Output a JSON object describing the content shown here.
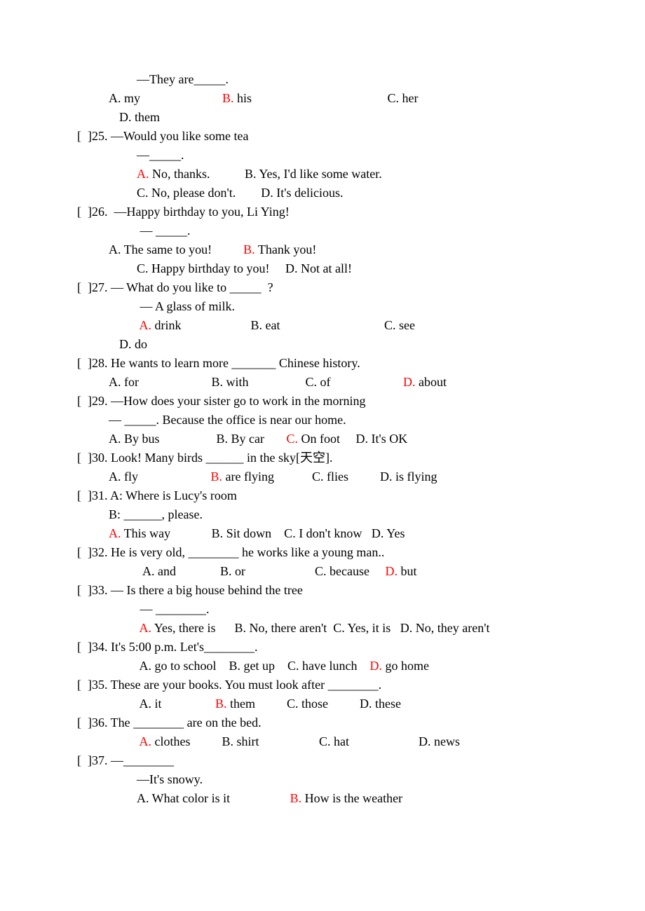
{
  "lines": [
    {
      "indent": 1,
      "segments": [
        {
          "t": "—They are_____."
        }
      ]
    },
    {
      "indent": 3,
      "segments": [
        {
          "t": "A. my                          "
        },
        {
          "t": "B.",
          "hl": true
        },
        {
          "t": " his                                           C. her"
        }
      ]
    },
    {
      "indent": 2,
      "segments": [
        {
          "t": "D. them"
        }
      ]
    },
    {
      "indent": 0,
      "segments": [
        {
          "t": "[  ]25. —Would you like some tea"
        }
      ]
    },
    {
      "indent": 1,
      "segments": [
        {
          "t": "—_____."
        }
      ]
    },
    {
      "indent": 1,
      "segments": [
        {
          "t": "A.",
          "hl": true
        },
        {
          "t": " No, thanks.           B. Yes, I'd like some water."
        }
      ]
    },
    {
      "indent": 1,
      "segments": [
        {
          "t": "C. No, please don't.        D. It's delicious."
        }
      ]
    },
    {
      "indent": 0,
      "segments": [
        {
          "t": "[  ]26.  —Happy birthday to you, Li Ying!"
        }
      ]
    },
    {
      "indent": 1,
      "segments": [
        {
          "t": " — _____."
        }
      ]
    },
    {
      "indent": 3,
      "segments": [
        {
          "t": "A. The same to you!          "
        },
        {
          "t": "B.",
          "hl": true
        },
        {
          "t": " Thank you!"
        }
      ]
    },
    {
      "indent": 1,
      "segments": [
        {
          "t": "C. Happy birthday to you!     D. Not at all!"
        }
      ]
    },
    {
      "indent": 0,
      "segments": [
        {
          "t": "[  ]27. — What do you like to _____  ?"
        }
      ]
    },
    {
      "indent": 1,
      "segments": [
        {
          "t": " — A glass of milk."
        }
      ]
    },
    {
      "indent": 1,
      "segments": [
        {
          "t": " "
        },
        {
          "t": "A.",
          "hl": true
        },
        {
          "t": " drink                      B. eat                                 C. see"
        }
      ]
    },
    {
      "indent": 2,
      "segments": [
        {
          "t": "D. do"
        }
      ]
    },
    {
      "indent": 0,
      "segments": [
        {
          "t": "[  ]28. He wants to learn more _______ Chinese history."
        }
      ]
    },
    {
      "indent": 3,
      "segments": [
        {
          "t": "A. for                       B. with                  C. of                       "
        },
        {
          "t": "D.",
          "hl": true
        },
        {
          "t": " about"
        }
      ]
    },
    {
      "indent": 0,
      "segments": [
        {
          "t": "[  ]29. —How does your sister go to work in the morning"
        }
      ]
    },
    {
      "indent": 3,
      "segments": [
        {
          "t": "— _____. Because the office is near our home."
        }
      ]
    },
    {
      "indent": 3,
      "segments": [
        {
          "t": "A. By bus                  B. By car       "
        },
        {
          "t": "C.",
          "hl": true
        },
        {
          "t": " On foot     D. It's OK"
        }
      ]
    },
    {
      "indent": 0,
      "segments": [
        {
          "t": "[  ]30. Look! Many birds ______ in the sky[天空]."
        }
      ]
    },
    {
      "indent": 3,
      "segments": [
        {
          "t": "A. fly                       "
        },
        {
          "t": "B.",
          "hl": true
        },
        {
          "t": " are flying            C. flies          D. is flying"
        }
      ]
    },
    {
      "indent": 0,
      "segments": [
        {
          "t": "[  ]31. A: Where is Lucy's room"
        }
      ]
    },
    {
      "indent": 3,
      "segments": [
        {
          "t": "B: ______, please."
        }
      ]
    },
    {
      "indent": 3,
      "segments": [
        {
          "t": "A.",
          "hl": true
        },
        {
          "t": " This way             B. Sit down    C. I don't know   D. Yes"
        }
      ]
    },
    {
      "indent": 0,
      "segments": [
        {
          "t": "[  ]32. He is very old, ________ he works like a young man.."
        }
      ]
    },
    {
      "indent": 1,
      "segments": [
        {
          "t": "  A. and              B"
        },
        {
          "t": ". "
        },
        {
          "t": "or                      C. because     "
        },
        {
          "t": "D.",
          "hl": true
        },
        {
          "t": " but"
        }
      ]
    },
    {
      "indent": 0,
      "segments": [
        {
          "t": "[  ]33. — Is there a big house behind the tree"
        }
      ]
    },
    {
      "indent": 1,
      "segments": [
        {
          "t": " — ________."
        }
      ]
    },
    {
      "indent": 1,
      "segments": [
        {
          "t": " "
        },
        {
          "t": "A.",
          "hl": true
        },
        {
          "t": " Yes, there is      B. No, there aren't  C. Yes, it is   D. No, they aren't"
        }
      ]
    },
    {
      "indent": 0,
      "segments": [
        {
          "t": "[  ]34. It's 5:00 p.m. Let's________."
        }
      ]
    },
    {
      "indent": 1,
      "segments": [
        {
          "t": " A. go to school    B"
        },
        {
          "t": ". "
        },
        {
          "t": "get up    C. have lunch    "
        },
        {
          "t": "D.",
          "hl": true
        },
        {
          "t": " go home"
        }
      ]
    },
    {
      "indent": 0,
      "segments": [
        {
          "t": "[  ]35. These are your books. You must look after ________."
        }
      ]
    },
    {
      "indent": 1,
      "segments": [
        {
          "t": " A. it                 "
        },
        {
          "t": "B.",
          "hl": true
        },
        {
          "t": " them          C. those          D. these"
        }
      ]
    },
    {
      "indent": 0,
      "segments": [
        {
          "t": "[  ]36. The ________ are on the bed."
        }
      ]
    },
    {
      "indent": 1,
      "segments": [
        {
          "t": " "
        },
        {
          "t": "A.",
          "hl": true
        },
        {
          "t": " clothes          B. shirt                   C. hat                      D. news"
        }
      ]
    },
    {
      "indent": 0,
      "segments": [
        {
          "t": "[  ]37. —________"
        }
      ]
    },
    {
      "indent": 1,
      "segments": [
        {
          "t": "—It's snowy."
        }
      ]
    },
    {
      "indent": 1,
      "segments": [
        {
          "t": "A. What color is it                   "
        },
        {
          "t": "B.",
          "hl": true
        },
        {
          "t": " How is the weather"
        }
      ]
    }
  ]
}
